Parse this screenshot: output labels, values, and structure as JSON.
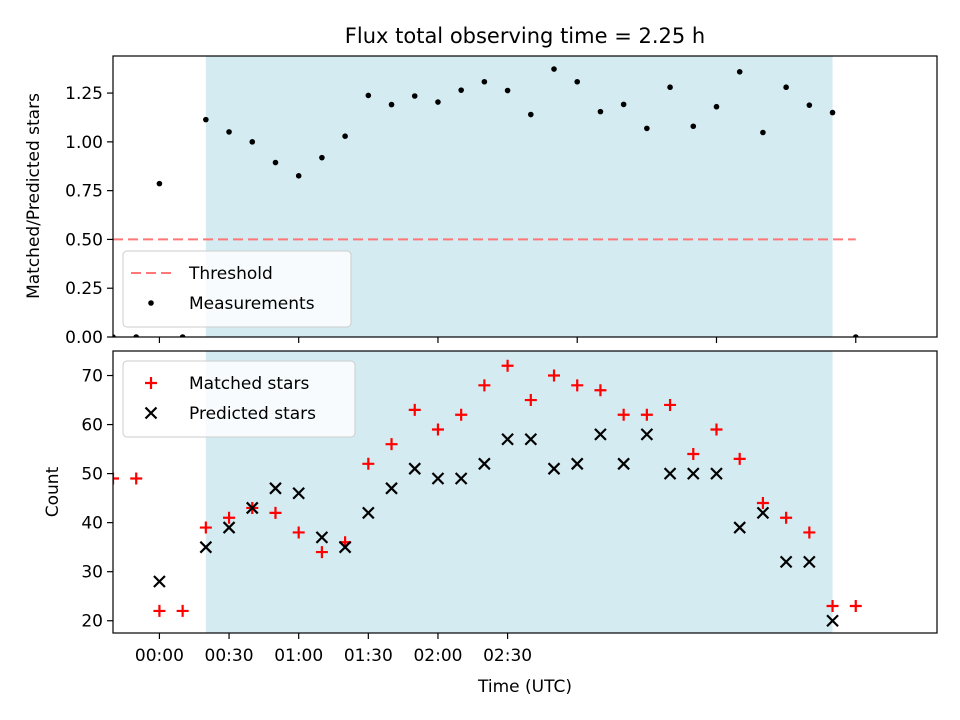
{
  "chart_data": [
    {
      "type": "scatter",
      "title": "Flux total observing time = 2.25 h",
      "xlabel": "",
      "ylabel": "Matched/Predicted stars",
      "xlim": [
        -20,
        335
      ],
      "ylim": [
        0,
        1.44
      ],
      "yticks": [
        {
          "value": 0,
          "label": "0.00"
        },
        {
          "value": 0.25,
          "label": "0.25"
        },
        {
          "value": 0.5,
          "label": "0.50"
        },
        {
          "value": 0.75,
          "label": "0.75"
        },
        {
          "value": 1.0,
          "label": "1.00"
        },
        {
          "value": 1.25,
          "label": "1.25"
        }
      ],
      "xticks": [
        0,
        60,
        120,
        180,
        240,
        300
      ],
      "shaded_interval": [
        20,
        290
      ],
      "shade_color": "#add8e6",
      "legend": {
        "placement": "lower-left",
        "entries": [
          {
            "name": "Threshold",
            "marker": "dashed-line",
            "color": "#ff7777"
          },
          {
            "name": "Measurements",
            "marker": "dot",
            "color": "#000000"
          }
        ]
      },
      "threshold": {
        "name": "Threshold",
        "value": 0.5,
        "x_range": [
          -20,
          300
        ],
        "color": "#ff7777"
      },
      "series": [
        {
          "name": "Measurements",
          "color": "#000000",
          "points": [
            [
              -20,
              0.0
            ],
            [
              -10,
              0.0
            ],
            [
              0,
              0.786
            ],
            [
              10,
              0.0
            ],
            [
              20,
              1.114
            ],
            [
              30,
              1.051
            ],
            [
              40,
              1.0
            ],
            [
              50,
              0.894
            ],
            [
              60,
              0.826
            ],
            [
              70,
              0.919
            ],
            [
              80,
              1.029
            ],
            [
              90,
              1.238
            ],
            [
              100,
              1.191
            ],
            [
              110,
              1.235
            ],
            [
              120,
              1.204
            ],
            [
              130,
              1.265
            ],
            [
              140,
              1.308
            ],
            [
              150,
              1.263
            ],
            [
              160,
              1.14
            ],
            [
              170,
              1.373
            ],
            [
              180,
              1.308
            ],
            [
              190,
              1.155
            ],
            [
              200,
              1.192
            ],
            [
              210,
              1.069
            ],
            [
              220,
              1.28
            ],
            [
              230,
              1.08
            ],
            [
              240,
              1.18
            ],
            [
              250,
              1.359
            ],
            [
              260,
              1.048
            ],
            [
              270,
              1.28
            ],
            [
              280,
              1.188
            ],
            [
              290,
              1.15
            ],
            [
              300,
              0.0
            ]
          ]
        }
      ]
    },
    {
      "type": "scatter",
      "title": "",
      "xlabel": "Time (UTC)",
      "ylabel": "Count",
      "xlim": [
        -20,
        335
      ],
      "ylim": [
        17.5,
        75
      ],
      "yticks": [
        {
          "value": 20,
          "label": "20"
        },
        {
          "value": 30,
          "label": "30"
        },
        {
          "value": 40,
          "label": "40"
        },
        {
          "value": 50,
          "label": "50"
        },
        {
          "value": 60,
          "label": "60"
        },
        {
          "value": 70,
          "label": "70"
        }
      ],
      "xticks": [
        {
          "value": 0,
          "label": "00:00"
        },
        {
          "value": 30,
          "label": "00:30"
        },
        {
          "value": 60,
          "label": "01:00"
        },
        {
          "value": 90,
          "label": "01:30"
        },
        {
          "value": 120,
          "label": "02:00"
        },
        {
          "value": 150,
          "label": "02:30"
        }
      ],
      "shaded_interval": [
        20,
        290
      ],
      "shade_color": "#add8e6",
      "legend": {
        "placement": "top-left",
        "entries": [
          {
            "name": "Matched stars",
            "marker": "plus",
            "color": "#ff0000"
          },
          {
            "name": "Predicted stars",
            "marker": "cross",
            "color": "#000000"
          }
        ]
      },
      "series": [
        {
          "name": "Matched stars",
          "marker": "plus",
          "color": "#ff0000",
          "points": [
            [
              -20,
              49
            ],
            [
              -10,
              49
            ],
            [
              0,
              22
            ],
            [
              10,
              22
            ],
            [
              20,
              39
            ],
            [
              30,
              41
            ],
            [
              40,
              43
            ],
            [
              50,
              42
            ],
            [
              60,
              38
            ],
            [
              70,
              34
            ],
            [
              80,
              36
            ],
            [
              90,
              52
            ],
            [
              100,
              56
            ],
            [
              110,
              63
            ],
            [
              120,
              59
            ],
            [
              130,
              62
            ],
            [
              140,
              68
            ],
            [
              150,
              72
            ],
            [
              160,
              65
            ],
            [
              170,
              70
            ],
            [
              180,
              68
            ],
            [
              190,
              67
            ],
            [
              200,
              62
            ],
            [
              210,
              62
            ],
            [
              220,
              64
            ],
            [
              230,
              54
            ],
            [
              240,
              59
            ],
            [
              250,
              53
            ],
            [
              260,
              44
            ],
            [
              270,
              41
            ],
            [
              280,
              38
            ],
            [
              290,
              23
            ],
            [
              300,
              23
            ]
          ]
        },
        {
          "name": "Predicted stars",
          "marker": "cross",
          "color": "#000000",
          "points": [
            [
              0,
              28
            ],
            [
              20,
              35
            ],
            [
              30,
              39
            ],
            [
              40,
              43
            ],
            [
              50,
              47
            ],
            [
              60,
              46
            ],
            [
              70,
              37
            ],
            [
              80,
              35
            ],
            [
              90,
              42
            ],
            [
              100,
              47
            ],
            [
              110,
              51
            ],
            [
              120,
              49
            ],
            [
              130,
              49
            ],
            [
              140,
              52
            ],
            [
              150,
              57
            ],
            [
              160,
              57
            ],
            [
              170,
              51
            ],
            [
              180,
              52
            ],
            [
              190,
              58
            ],
            [
              200,
              52
            ],
            [
              210,
              58
            ],
            [
              220,
              50
            ],
            [
              230,
              50
            ],
            [
              240,
              50
            ],
            [
              250,
              39
            ],
            [
              260,
              42
            ],
            [
              270,
              32
            ],
            [
              280,
              32
            ],
            [
              290,
              20
            ]
          ]
        }
      ]
    }
  ]
}
